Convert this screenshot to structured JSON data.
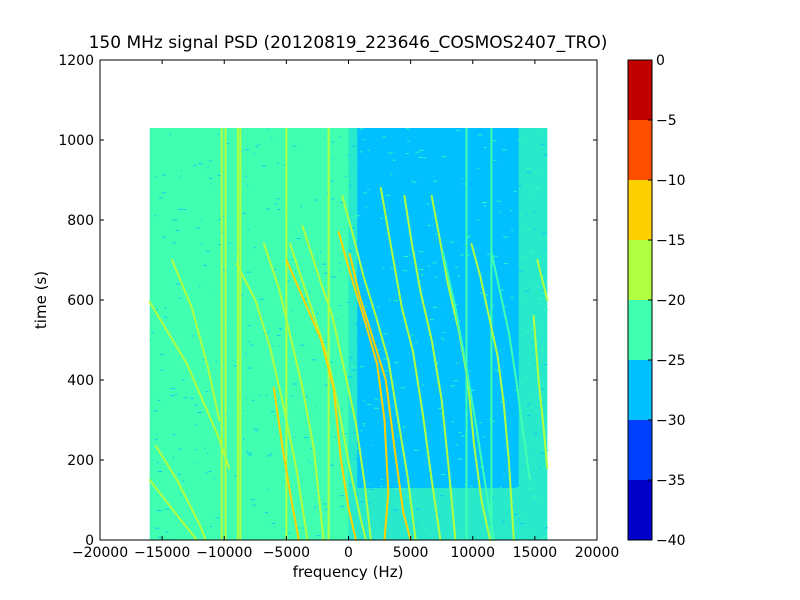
{
  "chart_data": {
    "type": "heatmap",
    "title": "150 MHz signal PSD (20120819_223646_COSMOS2407_TRO)",
    "xlabel": "frequency (Hz)",
    "ylabel": "time (s)",
    "xlim": [
      -20000,
      20000
    ],
    "ylim": [
      0,
      1200
    ],
    "xticks": [
      -20000,
      -15000,
      -10000,
      -5000,
      0,
      5000,
      10000,
      15000,
      20000
    ],
    "xtick_labels": [
      "−20000",
      "−15000",
      "−10000",
      "−5000",
      "0",
      "5000",
      "10000",
      "15000",
      "20000"
    ],
    "yticks": [
      0,
      200,
      400,
      600,
      800,
      1000,
      1200
    ],
    "ytick_labels": [
      "0",
      "200",
      "400",
      "600",
      "800",
      "1000",
      "1200"
    ],
    "data_extent": {
      "freq_min": -16000,
      "freq_max": 16000,
      "time_min": 0,
      "time_max": 1030
    },
    "colorbar": {
      "ticks": [
        0,
        -5,
        -10,
        -15,
        -20,
        -25,
        -30,
        -35,
        -40
      ],
      "tick_labels": [
        "0",
        "−5",
        "−10",
        "−15",
        "−20",
        "−25",
        "−30",
        "−35",
        "−40"
      ],
      "levels": [
        {
          "from": -40,
          "to": -35,
          "color": "#0000c8"
        },
        {
          "from": -35,
          "to": -30,
          "color": "#0040ff"
        },
        {
          "from": -30,
          "to": -25,
          "color": "#00c0ff"
        },
        {
          "from": -25,
          "to": -20,
          "color": "#40ffb0"
        },
        {
          "from": -20,
          "to": -15,
          "color": "#b0ff40"
        },
        {
          "from": -15,
          "to": -10,
          "color": "#ffd000"
        },
        {
          "from": -10,
          "to": -5,
          "color": "#ff5000"
        },
        {
          "from": -5,
          "to": 0,
          "color": "#c00000"
        }
      ]
    },
    "background": {
      "left_level": -22,
      "right_level": -27,
      "low_region": {
        "freq_from": 700,
        "freq_to": 13700,
        "time_from": 130,
        "time_to": 1030,
        "level": -27
      }
    },
    "vertical_lines": [
      {
        "freq": -10900,
        "level": -22
      },
      {
        "freq": -10200,
        "level": -17
      },
      {
        "freq": -9900,
        "level": -17
      },
      {
        "freq": -9400,
        "level": -22
      },
      {
        "freq": -8900,
        "level": -17
      },
      {
        "freq": -8700,
        "level": -17
      },
      {
        "freq": -5300,
        "level": -22
      },
      {
        "freq": -5000,
        "level": -17
      },
      {
        "freq": -4600,
        "level": -22
      },
      {
        "freq": -1600,
        "level": -17
      },
      {
        "freq": 9500,
        "level": -22
      },
      {
        "freq": 11500,
        "level": -22
      }
    ],
    "tracks": [
      {
        "level": -17,
        "points": [
          [
            -16000,
            595
          ],
          [
            -13000,
            440
          ],
          [
            -10500,
            260
          ],
          [
            -9600,
            180
          ]
        ]
      },
      {
        "level": -17,
        "points": [
          [
            -14200,
            700
          ],
          [
            -12600,
            580
          ],
          [
            -11300,
            430
          ],
          [
            -10400,
            300
          ]
        ]
      },
      {
        "level": -17,
        "points": [
          [
            -16000,
            150
          ],
          [
            -13500,
            50
          ],
          [
            -12200,
            0
          ]
        ]
      },
      {
        "level": -17,
        "points": [
          [
            -15500,
            235
          ],
          [
            -13800,
            150
          ],
          [
            -12000,
            40
          ],
          [
            -11500,
            0
          ]
        ]
      },
      {
        "level": -17,
        "points": [
          [
            -9000,
            690
          ],
          [
            -7500,
            600
          ],
          [
            -6300,
            480
          ],
          [
            -5200,
            330
          ],
          [
            -4200,
            180
          ],
          [
            -3300,
            0
          ]
        ]
      },
      {
        "level": -17,
        "points": [
          [
            -6800,
            740
          ],
          [
            -5600,
            630
          ],
          [
            -4600,
            500
          ],
          [
            -3700,
            380
          ],
          [
            -2800,
            230
          ],
          [
            -2000,
            0
          ]
        ]
      },
      {
        "level": -17,
        "points": [
          [
            -4700,
            740
          ],
          [
            -3200,
            600
          ],
          [
            -1700,
            460
          ],
          [
            -800,
            330
          ],
          [
            100,
            180
          ],
          [
            1000,
            50
          ],
          [
            1400,
            0
          ]
        ]
      },
      {
        "level": -12,
        "points": [
          [
            -5000,
            700
          ],
          [
            -3600,
            600
          ],
          [
            -2200,
            500
          ],
          [
            -1200,
            380
          ],
          [
            -600,
            200
          ],
          [
            0,
            80
          ],
          [
            600,
            0
          ]
        ]
      },
      {
        "level": -12,
        "points": [
          [
            -6000,
            380
          ],
          [
            -5300,
            230
          ],
          [
            -4600,
            100
          ],
          [
            -4000,
            0
          ]
        ]
      },
      {
        "level": -17,
        "points": [
          [
            -3700,
            785
          ],
          [
            -2300,
            650
          ],
          [
            -1300,
            560
          ],
          [
            -300,
            420
          ],
          [
            600,
            290
          ],
          [
            1300,
            140
          ],
          [
            1800,
            0
          ]
        ]
      },
      {
        "level": -12,
        "points": [
          [
            100,
            715
          ],
          [
            900,
            610
          ],
          [
            2000,
            500
          ],
          [
            3000,
            400
          ],
          [
            3700,
            230
          ],
          [
            4400,
            70
          ],
          [
            5000,
            0
          ]
        ]
      },
      {
        "level": -12,
        "points": [
          [
            -800,
            770
          ],
          [
            200,
            660
          ],
          [
            1200,
            560
          ],
          [
            2300,
            440
          ],
          [
            2900,
            300
          ],
          [
            3200,
            120
          ],
          [
            2900,
            0
          ]
        ]
      },
      {
        "level": -17,
        "points": [
          [
            -500,
            860
          ],
          [
            300,
            770
          ],
          [
            1200,
            660
          ],
          [
            2200,
            560
          ],
          [
            3200,
            450
          ],
          [
            4000,
            300
          ],
          [
            4800,
            150
          ],
          [
            5400,
            0
          ]
        ]
      },
      {
        "level": -17,
        "points": [
          [
            2600,
            880
          ],
          [
            3500,
            720
          ],
          [
            4300,
            580
          ],
          [
            5200,
            470
          ],
          [
            6000,
            310
          ],
          [
            6700,
            150
          ],
          [
            7400,
            0
          ]
        ]
      },
      {
        "level": -17,
        "points": [
          [
            4500,
            860
          ],
          [
            5100,
            740
          ],
          [
            5800,
            620
          ],
          [
            6700,
            500
          ],
          [
            7500,
            350
          ],
          [
            8000,
            200
          ],
          [
            8600,
            0
          ]
        ]
      },
      {
        "level": -17,
        "points": [
          [
            6700,
            860
          ],
          [
            7300,
            760
          ],
          [
            8000,
            640
          ],
          [
            8900,
            520
          ],
          [
            9600,
            400
          ],
          [
            10100,
            240
          ],
          [
            10700,
            100
          ],
          [
            11400,
            0
          ]
        ]
      },
      {
        "level": -17,
        "points": [
          [
            9900,
            740
          ],
          [
            10600,
            660
          ],
          [
            11300,
            560
          ],
          [
            12000,
            460
          ],
          [
            12500,
            340
          ],
          [
            12900,
            200
          ],
          [
            13300,
            0
          ]
        ]
      },
      {
        "level": -22,
        "points": [
          [
            11500,
            720
          ],
          [
            12200,
            620
          ],
          [
            12900,
            520
          ],
          [
            13500,
            400
          ],
          [
            14000,
            280
          ],
          [
            14600,
            150
          ]
        ]
      },
      {
        "level": -22,
        "points": [
          [
            7600,
            720
          ],
          [
            8600,
            580
          ],
          [
            9500,
            430
          ],
          [
            10300,
            280
          ],
          [
            11000,
            140
          ],
          [
            11700,
            0
          ]
        ]
      },
      {
        "level": -17,
        "points": [
          [
            14900,
            560
          ],
          [
            15300,
            400
          ],
          [
            15700,
            280
          ],
          [
            16000,
            180
          ]
        ]
      },
      {
        "level": -17,
        "points": [
          [
            15200,
            700
          ],
          [
            15600,
            650
          ],
          [
            16000,
            600
          ]
        ]
      }
    ]
  }
}
